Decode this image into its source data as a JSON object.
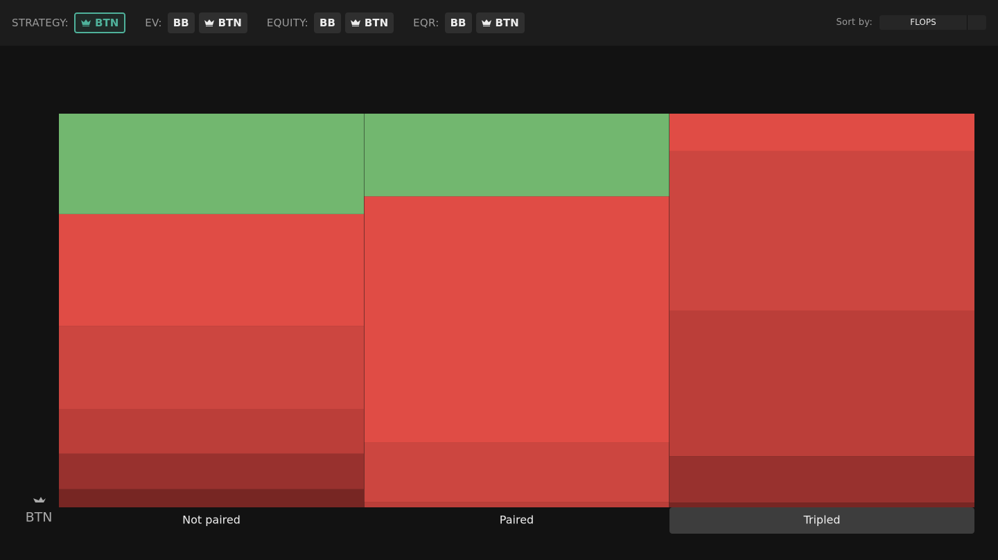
{
  "toolbar": {
    "groups": [
      {
        "label": "STRATEGY:",
        "buttons": [
          "BTN"
        ]
      },
      {
        "label": "EV:",
        "buttons": [
          "BB",
          "BTN"
        ]
      },
      {
        "label": "EQUITY:",
        "buttons": [
          "BB",
          "BTN"
        ]
      },
      {
        "label": "EQR:",
        "buttons": [
          "BB",
          "BTN"
        ]
      }
    ],
    "sort_label": "Sort by:",
    "sort_value": "FLOPS"
  },
  "chart_data": {
    "type": "stacked-bar",
    "y_label": "BTN",
    "categories": [
      "Not paired",
      "Paired",
      "Tripled"
    ],
    "selected": "Tripled",
    "ylim": [
      0,
      100
    ],
    "series": [
      {
        "color": "#72b76f",
        "values": [
          25.5,
          21,
          0
        ]
      },
      {
        "color": "#e04c45",
        "values": [
          28.5,
          62.6,
          9.5
        ]
      },
      {
        "color": "#cc4640",
        "values": [
          21,
          15,
          40.5
        ]
      },
      {
        "color": "#bb3e39",
        "values": [
          11.4,
          1.4,
          37
        ]
      },
      {
        "color": "#98312e",
        "values": [
          9,
          0,
          11.8
        ]
      },
      {
        "color": "#772623",
        "values": [
          4.6,
          0,
          1.2
        ]
      }
    ]
  }
}
